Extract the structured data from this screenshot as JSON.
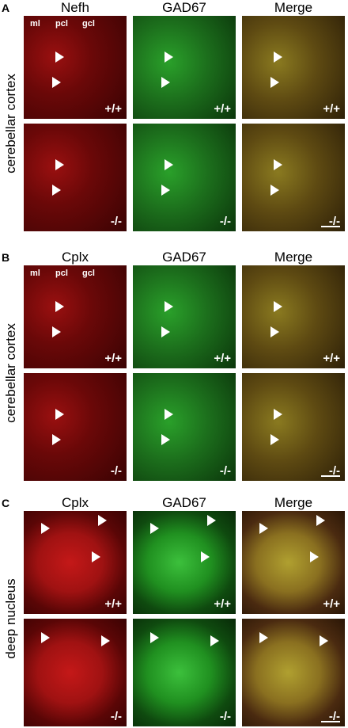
{
  "panels": [
    {
      "label": "A",
      "side_label": "cerebellar cortex",
      "columns": [
        "Nefh",
        "GAD67",
        "Merge"
      ],
      "layer_labels": [
        "ml",
        "pcl",
        "gcl"
      ],
      "rows": [
        [
          "+/+",
          "+/+",
          "+/+"
        ],
        [
          "-/-",
          "-/-",
          "-/-"
        ]
      ]
    },
    {
      "label": "B",
      "side_label": "cerebellar cortex",
      "columns": [
        "Cplx",
        "GAD67",
        "Merge"
      ],
      "layer_labels": [
        "ml",
        "pcl",
        "gcl"
      ],
      "rows": [
        [
          "+/+",
          "+/+",
          "+/+"
        ],
        [
          "-/-",
          "-/-",
          "-/-"
        ]
      ]
    },
    {
      "label": "C",
      "side_label": "deep nucleus",
      "columns": [
        "Cplx",
        "GAD67",
        "Merge"
      ],
      "rows": [
        [
          "+/+",
          "+/+",
          "+/+"
        ],
        [
          "-/-",
          "-/-",
          "-/-"
        ]
      ]
    }
  ]
}
